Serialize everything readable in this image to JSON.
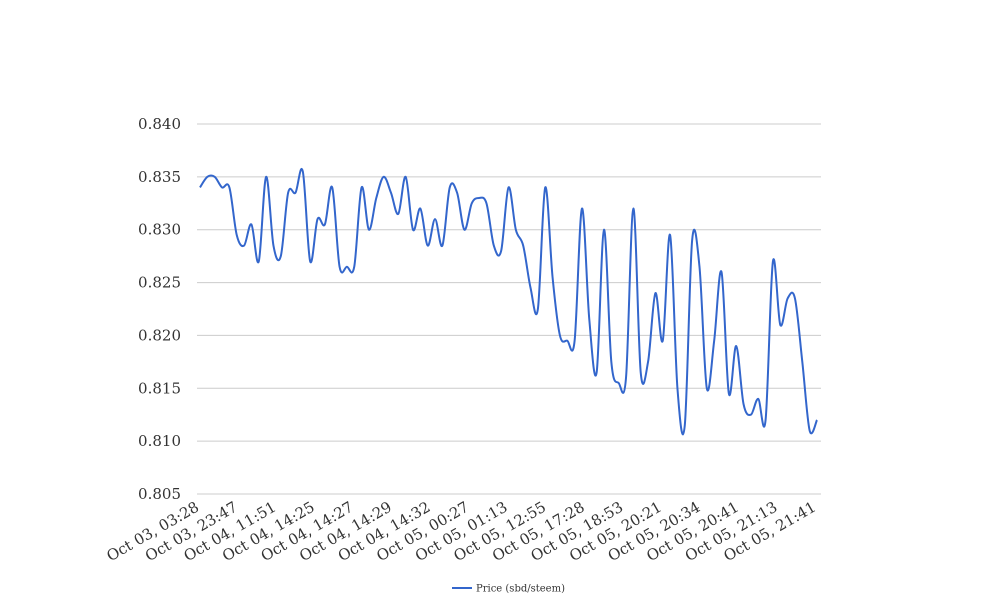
{
  "chart_data": {
    "type": "line",
    "title": "",
    "xlabel": "",
    "ylabel": "",
    "ylim": [
      0.805,
      0.84
    ],
    "yticks": [
      "0.805",
      "0.810",
      "0.815",
      "0.820",
      "0.825",
      "0.830",
      "0.835",
      "0.840"
    ],
    "xtick_labels": [
      "Oct 03, 03:28",
      "Oct 03, 23:47",
      "Oct 04, 11:51",
      "Oct 04, 14:25",
      "Oct 04, 14:27",
      "Oct 04, 14:29",
      "Oct 04, 14:32",
      "Oct 05, 00:27",
      "Oct 05, 01:13",
      "Oct 05, 12:55",
      "Oct 05, 17:28",
      "Oct 05, 18:53",
      "Oct 05, 20:21",
      "Oct 05, 20:34",
      "Oct 05, 20:41",
      "Oct 05, 21:13",
      "Oct 05, 21:41"
    ],
    "grid": true,
    "legend_position": "bottom",
    "series": [
      {
        "name": "Price (sbd/steem)",
        "color": "#3366cc",
        "values": [
          0.834,
          0.835,
          0.835,
          0.834,
          0.834,
          0.8295,
          0.8285,
          0.8305,
          0.827,
          0.835,
          0.8285,
          0.8275,
          0.8335,
          0.8335,
          0.8355,
          0.827,
          0.831,
          0.8305,
          0.834,
          0.8265,
          0.8265,
          0.8265,
          0.834,
          0.83,
          0.833,
          0.835,
          0.8335,
          0.8315,
          0.835,
          0.83,
          0.832,
          0.8285,
          0.831,
          0.8285,
          0.834,
          0.8335,
          0.83,
          0.8325,
          0.833,
          0.8325,
          0.8285,
          0.828,
          0.834,
          0.83,
          0.8285,
          0.8245,
          0.8225,
          0.834,
          0.8255,
          0.82,
          0.8195,
          0.8195,
          0.832,
          0.8215,
          0.8165,
          0.83,
          0.8175,
          0.8155,
          0.816,
          0.832,
          0.8165,
          0.8175,
          0.824,
          0.8195,
          0.8295,
          0.815,
          0.8115,
          0.829,
          0.8265,
          0.815,
          0.8195,
          0.826,
          0.8145,
          0.819,
          0.8135,
          0.8125,
          0.814,
          0.812,
          0.827,
          0.821,
          0.8235,
          0.8235,
          0.8175,
          0.811,
          0.812
        ]
      }
    ]
  }
}
